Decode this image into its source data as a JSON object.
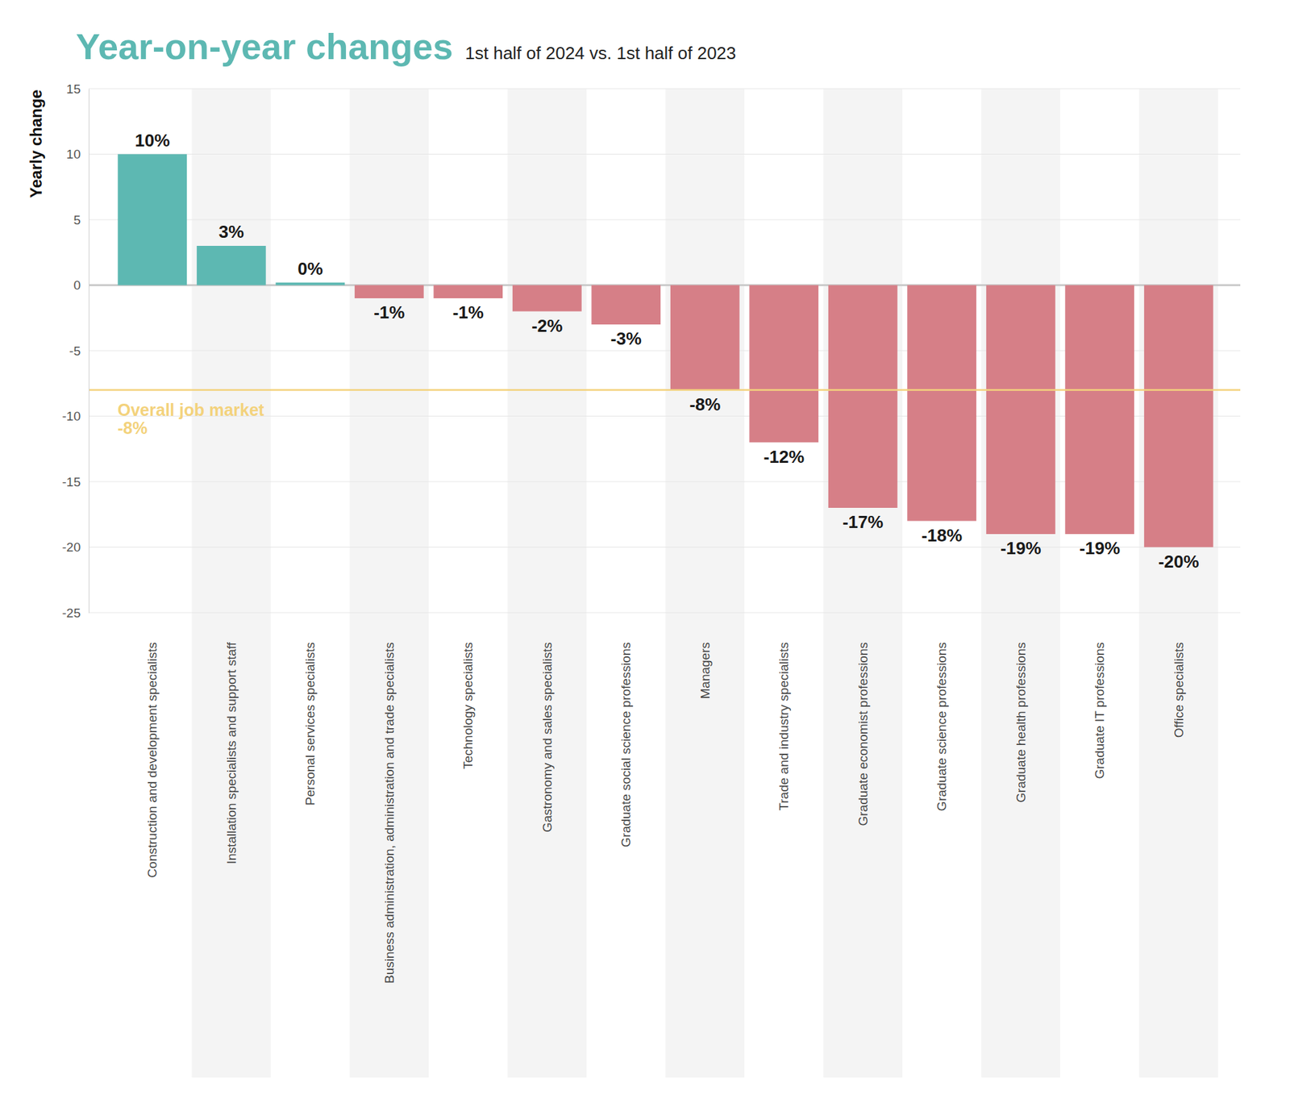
{
  "chart_data": {
    "type": "bar",
    "title": "Year-on-year changes",
    "subtitle": "1st half of 2024 vs. 1st half of 2023",
    "ylabel": "Yearly change",
    "categories": [
      "Construction and development specialists",
      "Installation specialists and support staff",
      "Personal services specialists",
      "Business administration, administration and trade specialists",
      "Technology specialists",
      "Gastronomy and sales specialists",
      "Graduate social science professions",
      "Managers",
      "Trade and industry specialists",
      "Graduate economist professions",
      "Graduate science professions",
      "Graduate health professions",
      "Graduate IT professions",
      "Office specialists"
    ],
    "values": [
      10,
      3,
      0.2,
      -1,
      -1,
      -2,
      -3,
      -8,
      -12,
      -17,
      -18,
      -19,
      -19,
      -20
    ],
    "value_labels": [
      "10%",
      "3%",
      "0%",
      "-1%",
      "-1%",
      "-2%",
      "-3%",
      "-8%",
      "-12%",
      "-17%",
      "-18%",
      "-19%",
      "-19%",
      "-20%"
    ],
    "colors": [
      "#5db8b2",
      "#5db8b2",
      "#5db8b2",
      "#d67f87",
      "#d67f87",
      "#d67f87",
      "#d67f87",
      "#d67f87",
      "#d67f87",
      "#d67f87",
      "#d67f87",
      "#d67f87",
      "#d67f87",
      "#d67f87"
    ],
    "ylim": [
      -25,
      15
    ],
    "yticks": [
      -25,
      -20,
      -15,
      -10,
      -5,
      0,
      5,
      10,
      15
    ],
    "grid": true,
    "data_labels": true,
    "annotations": [
      {
        "type": "hline",
        "y": -8,
        "text": "Overall job market",
        "value_label": "-8%",
        "color": "#f3d27c"
      }
    ]
  }
}
